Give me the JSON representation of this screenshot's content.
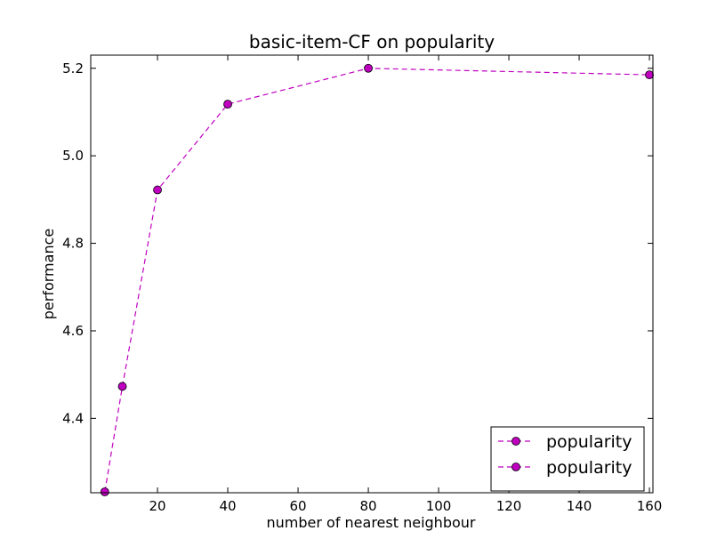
{
  "chart_data": {
    "type": "line",
    "title": "basic-item-CF on popularity",
    "xlabel": "number of nearest neighbour",
    "ylabel": "performance",
    "xlim": [
      1,
      161
    ],
    "ylim": [
      4.23,
      5.23
    ],
    "xticks": [
      20,
      40,
      60,
      80,
      100,
      120,
      140,
      160
    ],
    "yticks": [
      4.4,
      4.6,
      4.8,
      5.0,
      5.2
    ],
    "xtick_labels": [
      "20",
      "40",
      "60",
      "80",
      "100",
      "120",
      "140",
      "160"
    ],
    "ytick_labels": [
      "4.4",
      "4.6",
      "4.8",
      "5.0",
      "5.2"
    ],
    "series": [
      {
        "name": "popularity",
        "color": "#bf00bf",
        "marker": "circle",
        "linestyle": "dashed",
        "x": [
          5,
          10,
          20,
          40,
          80,
          160
        ],
        "y": [
          4.232,
          4.473,
          4.922,
          5.118,
          5.2,
          5.185
        ]
      }
    ],
    "legend": {
      "location": "lower-right",
      "entries": [
        "popularity",
        "popularity"
      ]
    }
  }
}
